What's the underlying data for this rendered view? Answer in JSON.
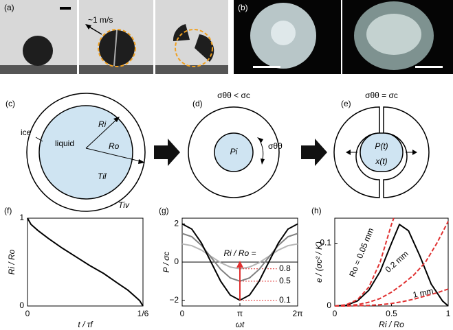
{
  "panels": {
    "a": {
      "label": "(a)",
      "speed": "~1 m/s"
    },
    "b": {
      "label": "(b)"
    },
    "c": {
      "label": "(c)",
      "ice": "ice",
      "liquid": "liquid",
      "ri": "Ri",
      "ro": "Ro",
      "til": "Til",
      "tiv": "Tiv"
    },
    "d": {
      "label": "(d)",
      "condition": "σθθ < σc",
      "pi": "Pi",
      "stress": "σθθ"
    },
    "e": {
      "label": "(e)",
      "condition": "σθθ = σc",
      "pressure": "P(t)",
      "gap": "x(t)"
    }
  },
  "chart_data": [
    {
      "type": "line",
      "panel": "(f)",
      "xlabel": "t / τf",
      "ylabel": "Ri / Ro",
      "xlim": [
        0,
        0.1667
      ],
      "xticks": [
        0,
        {
          "value": 0.1667,
          "label": "1/6"
        }
      ],
      "ylim": [
        0,
        1
      ],
      "yticks": [
        0,
        1
      ],
      "series": [
        {
          "color": "#000000",
          "x": [
            0,
            0.005,
            0.015,
            0.03,
            0.05,
            0.07,
            0.09,
            0.11,
            0.13,
            0.145,
            0.155,
            0.162,
            0.1667
          ],
          "values": [
            1,
            0.93,
            0.86,
            0.77,
            0.66,
            0.56,
            0.46,
            0.37,
            0.26,
            0.18,
            0.11,
            0.06,
            0
          ]
        }
      ]
    },
    {
      "type": "line",
      "panel": "(g)",
      "xlabel": "ωt",
      "ylabel": "P / σc",
      "annotation": "Ri / Ro =",
      "xlim": [
        0,
        6.2832
      ],
      "xticks": [
        0,
        {
          "value": 3.1416,
          "label": "π"
        },
        {
          "value": 6.2832,
          "label": "2π"
        }
      ],
      "ylim": [
        -2.3,
        2.3
      ],
      "yticks": [
        {
          "value": -2,
          "label": "−2"
        },
        0,
        2
      ],
      "series": [
        {
          "name": "0.8",
          "color": "#b4b4b4",
          "x": [
            0,
            0.5236,
            1.0472,
            1.5708,
            2.0944,
            2.618,
            3.1416,
            3.6652,
            4.1888,
            4.7124,
            5.236,
            5.7596,
            6.2832
          ],
          "values": [
            0.95,
            0.86,
            0.63,
            0.3,
            -0.03,
            -0.26,
            -0.35,
            -0.26,
            -0.03,
            0.3,
            0.63,
            0.86,
            0.95
          ]
        },
        {
          "name": "0.5",
          "color": "#7f7f7f",
          "x": [
            0,
            0.5236,
            1.0472,
            1.5708,
            2.0944,
            2.618,
            3.1416,
            3.6652,
            4.1888,
            4.7124,
            5.236,
            5.7596,
            6.2832
          ],
          "values": [
            1.5,
            1.33,
            0.88,
            0.25,
            -0.38,
            -0.83,
            -1,
            -0.83,
            -0.38,
            0.25,
            0.88,
            1.33,
            1.5
          ]
        },
        {
          "name": "0.1",
          "color": "#000000",
          "x": [
            0,
            0.5236,
            1.0472,
            1.5708,
            2.0944,
            2.618,
            3.1416,
            3.6652,
            4.1888,
            4.7124,
            5.236,
            5.7596,
            6.2832
          ],
          "values": [
            2,
            1.73,
            1,
            0,
            -1,
            -1.73,
            -2,
            -1.73,
            -1,
            0,
            1,
            1.73,
            2
          ]
        }
      ]
    },
    {
      "type": "line",
      "panel": "(h)",
      "xlabel": "Ri / Ro",
      "ylabel": "e / (σc² / K)",
      "xlim": [
        0,
        1
      ],
      "xticks": [
        0,
        0.5,
        1
      ],
      "ylim": [
        0,
        0.14
      ],
      "yticks": [
        0,
        0.1
      ],
      "series": [
        {
          "color": "#000000",
          "x": [
            0,
            0.1,
            0.2,
            0.3,
            0.4,
            0.5,
            0.57,
            0.65,
            0.75,
            0.85,
            0.95,
            1
          ],
          "values": [
            0,
            0.001,
            0.008,
            0.025,
            0.055,
            0.1,
            0.13,
            0.12,
            0.08,
            0.035,
            0.008,
            0
          ]
        },
        {
          "name": "Ro = 0.05 mm",
          "color": "#e03030",
          "style": "dashed",
          "x": [
            0,
            0.1,
            0.2,
            0.3,
            0.4,
            0.5,
            0.52
          ],
          "values": [
            0,
            0.002,
            0.01,
            0.03,
            0.07,
            0.13,
            0.14
          ]
        },
        {
          "name": "0.2 mm",
          "color": "#e03030",
          "style": "dashed",
          "x": [
            0,
            0.1,
            0.2,
            0.3,
            0.4,
            0.5,
            0.6,
            0.7,
            0.8,
            0.9,
            1
          ],
          "values": [
            0,
            0.0005,
            0.002,
            0.006,
            0.012,
            0.022,
            0.035,
            0.05,
            0.07,
            0.1,
            0.135
          ]
        },
        {
          "name": "1 mm",
          "color": "#e03030",
          "style": "dashed",
          "x": [
            0,
            0.1,
            0.2,
            0.3,
            0.4,
            0.5,
            0.6,
            0.7,
            0.8,
            0.9,
            1
          ],
          "values": [
            0,
            0,
            0.0005,
            0.001,
            0.002,
            0.004,
            0.007,
            0.011,
            0.016,
            0.021,
            0.027
          ]
        }
      ]
    }
  ]
}
